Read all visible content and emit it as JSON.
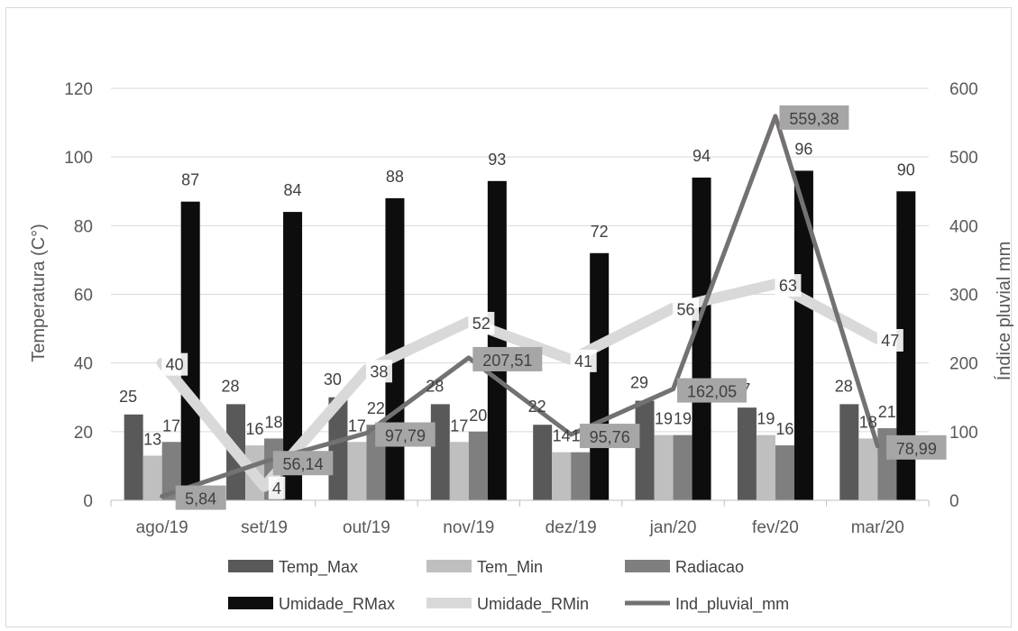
{
  "chart_data": {
    "type": "bar",
    "categories": [
      "ago/19",
      "set/19",
      "out/19",
      "nov/19",
      "dez/19",
      "jan/20",
      "fev/20",
      "mar/20"
    ],
    "ylabel": "Temperatura (C°)",
    "y2label": "Índice pluvial mm",
    "ylim": [
      0,
      120
    ],
    "y2lim": [
      0,
      600
    ],
    "yticks": [
      "0",
      "20",
      "40",
      "60",
      "80",
      "100",
      "120"
    ],
    "y2ticks": [
      "0",
      "100",
      "200",
      "300",
      "400",
      "500",
      "600"
    ],
    "grid": true,
    "legend_position": "bottom",
    "series": [
      {
        "name": "Temp_Max",
        "kind": "bar",
        "axis": "left",
        "color": "#595959",
        "values": [
          25,
          28,
          30,
          28,
          22,
          29,
          27,
          28
        ],
        "labels": [
          "25",
          "28",
          "30",
          "28",
          "22",
          "29",
          "27",
          "28"
        ]
      },
      {
        "name": "Tem_Min",
        "kind": "bar",
        "axis": "left",
        "color": "#bfbfbf",
        "values": [
          13,
          16,
          17,
          17,
          14,
          19,
          19,
          18
        ],
        "labels": [
          "13",
          "16",
          "17",
          "17",
          "14",
          "19",
          "19",
          "18"
        ]
      },
      {
        "name": "Radiacao",
        "kind": "bar",
        "axis": "left",
        "color": "#7f7f7f",
        "values": [
          17,
          18,
          22,
          20,
          14,
          19,
          16,
          21
        ],
        "labels": [
          "17",
          "18",
          "22",
          "20",
          "14",
          "19",
          "16",
          "21"
        ]
      },
      {
        "name": "Umidade_RMax",
        "kind": "bar",
        "axis": "left",
        "color": "#0d0d0d",
        "values": [
          87,
          84,
          88,
          93,
          72,
          94,
          96,
          90
        ],
        "labels": [
          "87",
          "84",
          "88",
          "93",
          "72",
          "94",
          "96",
          "90"
        ]
      },
      {
        "name": "Umidade_RMin",
        "kind": "line",
        "axis": "left",
        "color": "#d9d9d9",
        "values": [
          40,
          4,
          38,
          52,
          41,
          56,
          63,
          47
        ],
        "labels": [
          "40",
          "4",
          "38",
          "52",
          "41",
          "56",
          "63",
          "47"
        ]
      },
      {
        "name": "Ind_pluvial_mm",
        "kind": "line",
        "axis": "right",
        "color": "#767171",
        "values": [
          5.84,
          56.14,
          97.79,
          207.51,
          95.76,
          162.05,
          559.38,
          78.99
        ],
        "labels": [
          "5,84",
          "56,14",
          "97,79",
          "207,51",
          "95,76",
          "162,05",
          "559,38",
          "78,99"
        ]
      }
    ]
  }
}
